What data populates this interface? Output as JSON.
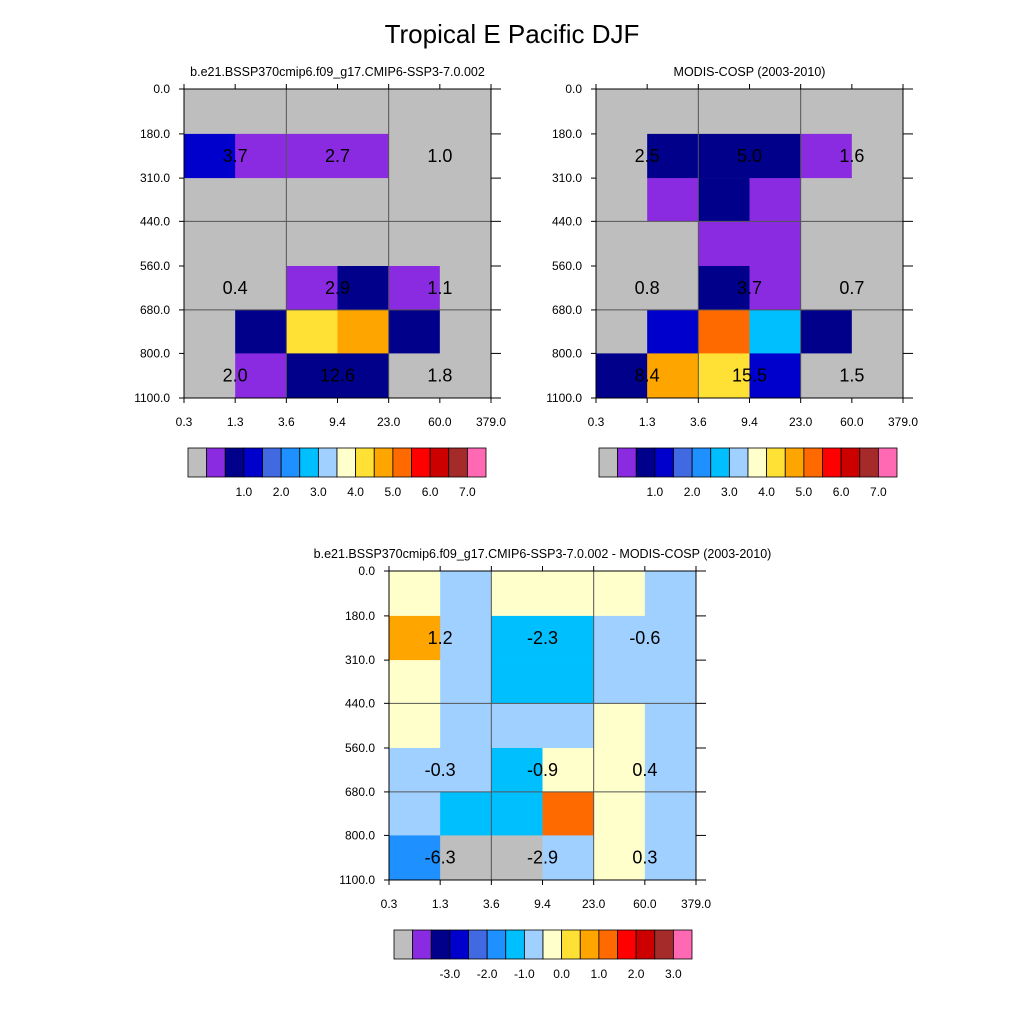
{
  "figure_title": "Tropical E Pacific DJF",
  "chart_data": [
    {
      "type": "heatmap",
      "title": "b.e21.BSSP370cmip6.f09_g17.CMIP6-SSP3-7.0.002",
      "x_ticks": [
        "0.3",
        "1.3",
        "3.6",
        "9.4",
        "23.0",
        "60.0",
        "379.0"
      ],
      "y_ticks": [
        "0.0",
        "180.0",
        "310.0",
        "440.0",
        "560.0",
        "680.0",
        "800.0",
        "1100.0"
      ],
      "cell_colors": [
        [
          "#BEBEBE",
          "#BEBEBE",
          "#BEBEBE",
          "#BEBEBE",
          "#BEBEBE",
          "#BEBEBE"
        ],
        [
          "#0000CD",
          "#8A2BE2",
          "#8A2BE2",
          "#8A2BE2",
          "#BEBEBE",
          "#BEBEBE"
        ],
        [
          "#BEBEBE",
          "#BEBEBE",
          "#BEBEBE",
          "#BEBEBE",
          "#BEBEBE",
          "#BEBEBE"
        ],
        [
          "#BEBEBE",
          "#BEBEBE",
          "#BEBEBE",
          "#BEBEBE",
          "#BEBEBE",
          "#BEBEBE"
        ],
        [
          "#BEBEBE",
          "#BEBEBE",
          "#8A2BE2",
          "#00008B",
          "#8A2BE2",
          "#BEBEBE"
        ],
        [
          "#BEBEBE",
          "#00008B",
          "#FFE135",
          "#FFA500",
          "#00008B",
          "#BEBEBE"
        ],
        [
          "#BEBEBE",
          "#8A2BE2",
          "#00008B",
          "#00008B",
          "#BEBEBE",
          "#BEBEBE"
        ]
      ],
      "labels": [
        {
          "row": 1,
          "col": 1,
          "text": "3.7"
        },
        {
          "row": 1,
          "col": 3,
          "text": "2.7"
        },
        {
          "row": 1,
          "col": 5,
          "text": "1.0"
        },
        {
          "row": 4,
          "col": 1,
          "text": "0.4"
        },
        {
          "row": 4,
          "col": 3,
          "text": "2.9"
        },
        {
          "row": 4,
          "col": 5,
          "text": "1.1"
        },
        {
          "row": 6,
          "col": 1,
          "text": "2.0"
        },
        {
          "row": 6,
          "col": 3,
          "text": "12.6"
        },
        {
          "row": 6,
          "col": 5,
          "text": "1.8"
        }
      ],
      "colorbar": {
        "colors": [
          "#BEBEBE",
          "#8A2BE2",
          "#00008B",
          "#0000CD",
          "#4169E1",
          "#1E90FF",
          "#00BFFF",
          "#A0D0FF",
          "#FFFFCC",
          "#FFE135",
          "#FFA500",
          "#FF6A00",
          "#FF0000",
          "#CD0000",
          "#A52A2A",
          "#FF69B4"
        ],
        "tick_labels": [
          "1.0",
          "2.0",
          "3.0",
          "4.0",
          "5.0",
          "6.0",
          "7.0"
        ]
      }
    },
    {
      "type": "heatmap",
      "title": "MODIS-COSP (2003-2010)",
      "x_ticks": [
        "0.3",
        "1.3",
        "3.6",
        "9.4",
        "23.0",
        "60.0",
        "379.0"
      ],
      "y_ticks": [
        "0.0",
        "180.0",
        "310.0",
        "440.0",
        "560.0",
        "680.0",
        "800.0",
        "1100.0"
      ],
      "cell_colors": [
        [
          "#BEBEBE",
          "#BEBEBE",
          "#BEBEBE",
          "#BEBEBE",
          "#BEBEBE",
          "#BEBEBE"
        ],
        [
          "#BEBEBE",
          "#00008B",
          "#00008B",
          "#00008B",
          "#8A2BE2",
          "#BEBEBE"
        ],
        [
          "#BEBEBE",
          "#8A2BE2",
          "#00008B",
          "#8A2BE2",
          "#BEBEBE",
          "#BEBEBE"
        ],
        [
          "#BEBEBE",
          "#BEBEBE",
          "#8A2BE2",
          "#8A2BE2",
          "#BEBEBE",
          "#BEBEBE"
        ],
        [
          "#BEBEBE",
          "#BEBEBE",
          "#00008B",
          "#8A2BE2",
          "#BEBEBE",
          "#BEBEBE"
        ],
        [
          "#BEBEBE",
          "#0000CD",
          "#FF6A00",
          "#00BFFF",
          "#00008B",
          "#BEBEBE"
        ],
        [
          "#00008B",
          "#FFA500",
          "#FFE135",
          "#0000CD",
          "#BEBEBE",
          "#BEBEBE"
        ]
      ],
      "labels": [
        {
          "row": 1,
          "col": 1,
          "text": "2.5"
        },
        {
          "row": 1,
          "col": 3,
          "text": "5.0"
        },
        {
          "row": 1,
          "col": 5,
          "text": "1.6"
        },
        {
          "row": 4,
          "col": 1,
          "text": "0.8"
        },
        {
          "row": 4,
          "col": 3,
          "text": "3.7"
        },
        {
          "row": 4,
          "col": 5,
          "text": "0.7"
        },
        {
          "row": 6,
          "col": 1,
          "text": "8.4"
        },
        {
          "row": 6,
          "col": 3,
          "text": "15.5"
        },
        {
          "row": 6,
          "col": 5,
          "text": "1.5"
        }
      ],
      "colorbar": {
        "colors": [
          "#BEBEBE",
          "#8A2BE2",
          "#00008B",
          "#0000CD",
          "#4169E1",
          "#1E90FF",
          "#00BFFF",
          "#A0D0FF",
          "#FFFFCC",
          "#FFE135",
          "#FFA500",
          "#FF6A00",
          "#FF0000",
          "#CD0000",
          "#A52A2A",
          "#FF69B4"
        ],
        "tick_labels": [
          "1.0",
          "2.0",
          "3.0",
          "4.0",
          "5.0",
          "6.0",
          "7.0"
        ]
      }
    },
    {
      "type": "heatmap",
      "title": "b.e21.BSSP370cmip6.f09_g17.CMIP6-SSP3-7.0.002 - MODIS-COSP (2003-2010)",
      "x_ticks": [
        "0.3",
        "1.3",
        "3.6",
        "9.4",
        "23.0",
        "60.0",
        "379.0"
      ],
      "y_ticks": [
        "0.0",
        "180.0",
        "310.0",
        "440.0",
        "560.0",
        "680.0",
        "800.0",
        "1100.0"
      ],
      "cell_colors": [
        [
          "#FFFFCC",
          "#A0D0FF",
          "#FFFFCC",
          "#FFFFCC",
          "#FFFFCC",
          "#A0D0FF"
        ],
        [
          "#FFA500",
          "#A0D0FF",
          "#00BFFF",
          "#00BFFF",
          "#A0D0FF",
          "#A0D0FF"
        ],
        [
          "#FFFFCC",
          "#A0D0FF",
          "#00BFFF",
          "#00BFFF",
          "#A0D0FF",
          "#A0D0FF"
        ],
        [
          "#FFFFCC",
          "#A0D0FF",
          "#A0D0FF",
          "#A0D0FF",
          "#FFFFCC",
          "#A0D0FF"
        ],
        [
          "#A0D0FF",
          "#A0D0FF",
          "#00BFFF",
          "#FFFFCC",
          "#FFFFCC",
          "#A0D0FF"
        ],
        [
          "#A0D0FF",
          "#00BFFF",
          "#00BFFF",
          "#FF6A00",
          "#FFFFCC",
          "#A0D0FF"
        ],
        [
          "#1E90FF",
          "#BEBEBE",
          "#BEBEBE",
          "#A0D0FF",
          "#FFFFCC",
          "#A0D0FF"
        ]
      ],
      "labels": [
        {
          "row": 1,
          "col": 1,
          "text": "1.2"
        },
        {
          "row": 1,
          "col": 3,
          "text": "-2.3"
        },
        {
          "row": 1,
          "col": 5,
          "text": "-0.6"
        },
        {
          "row": 4,
          "col": 1,
          "text": "-0.3"
        },
        {
          "row": 4,
          "col": 3,
          "text": "-0.9"
        },
        {
          "row": 4,
          "col": 5,
          "text": "0.4"
        },
        {
          "row": 6,
          "col": 1,
          "text": "-6.3"
        },
        {
          "row": 6,
          "col": 3,
          "text": "-2.9"
        },
        {
          "row": 6,
          "col": 5,
          "text": "0.3"
        }
      ],
      "colorbar": {
        "colors": [
          "#BEBEBE",
          "#8A2BE2",
          "#00008B",
          "#0000CD",
          "#4169E1",
          "#1E90FF",
          "#00BFFF",
          "#A0D0FF",
          "#FFFFCC",
          "#FFE135",
          "#FFA500",
          "#FF6A00",
          "#FF0000",
          "#CD0000",
          "#A52A2A",
          "#FF69B4"
        ],
        "tick_labels": [
          "-3.0",
          "-2.0",
          "-1.0",
          "0.0",
          "1.0",
          "2.0",
          "3.0"
        ]
      }
    }
  ]
}
